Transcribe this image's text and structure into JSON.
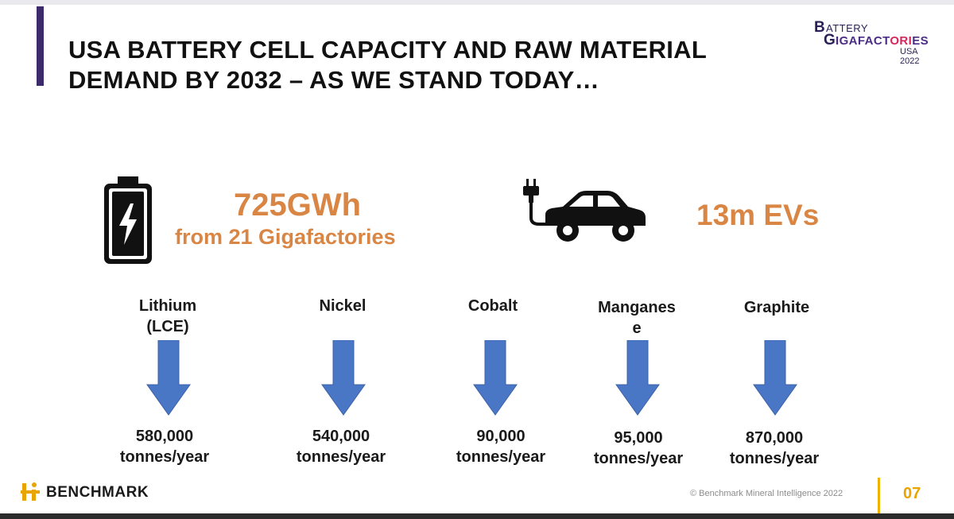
{
  "title": {
    "line1": "USA BATTERY CELL CAPACITY AND RAW MATERIAL",
    "line2": "DEMAND BY 2032 – AS WE STAND TODAY…"
  },
  "event_logo": {
    "b": "B",
    "attery": "ATTERY",
    "g": "G",
    "igafact": "IGAFACT",
    "ori": "ORI",
    "es": "ES",
    "year": "USA 2022"
  },
  "capacity": {
    "value": "725GWh",
    "subtitle": "from 21 Gigafactories"
  },
  "evs": {
    "value": "13m EVs"
  },
  "materials": [
    {
      "name_line1": "Lithium",
      "name_line2": "(LCE)",
      "value_line1": "580,000",
      "value_line2": "tonnes/year"
    },
    {
      "name_line1": "Nickel",
      "name_line2": "",
      "value_line1": "540,000",
      "value_line2": "tonnes/year"
    },
    {
      "name_line1": "Cobalt",
      "name_line2": "",
      "value_line1": "90,000",
      "value_line2": "tonnes/year"
    },
    {
      "name_line1": "Manganes",
      "name_line2": "e",
      "value_line1": "95,000",
      "value_line2": "tonnes/year"
    },
    {
      "name_line1": "Graphite",
      "name_line2": "",
      "value_line1": "870,000",
      "value_line2": "tonnes/year"
    }
  ],
  "footer": {
    "brand": "BENCHMARK",
    "copyright": "© Benchmark Mineral Intelligence 2022",
    "page": "07"
  },
  "colors": {
    "accent_orange": "#d98645",
    "arrow_blue": "#4a76c6",
    "title_bar": "#3d2a6b",
    "page_gold": "#f0b400"
  },
  "icons": [
    "battery-icon",
    "lightning-icon",
    "plug-icon",
    "car-icon",
    "down-arrow-icon",
    "benchmark-logo-icon"
  ]
}
